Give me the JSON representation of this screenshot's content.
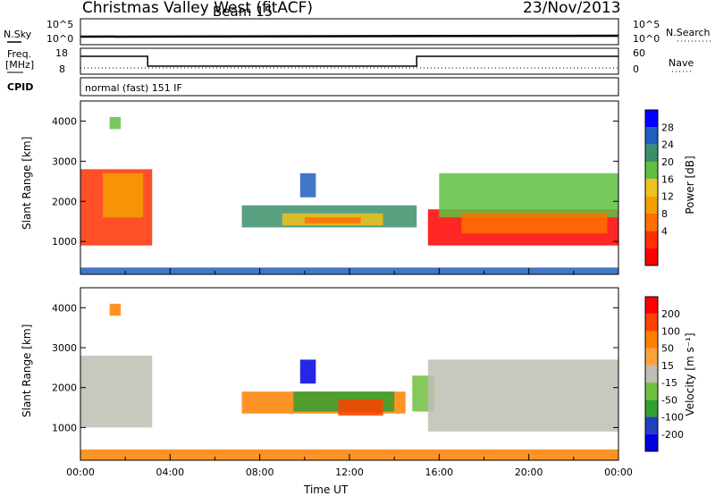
{
  "header": {
    "title": "Christmas Valley West (fitACF)",
    "beam": "Beam 15",
    "date": "23/Nov/2013"
  },
  "status_panels": {
    "nsky_label": "N.Sky",
    "nsearch_label": "N.Search",
    "nsky_ticks": [
      "10^5",
      "10^0"
    ],
    "nsearch_ticks": [
      "10^5",
      "10^0"
    ],
    "freq_label_1": "Freq.",
    "freq_label_2": "[MHz]",
    "freq_ticks": [
      "18",
      "8"
    ],
    "nave_label": "Nave",
    "nave_ticks": [
      "60",
      "0"
    ],
    "cpid_label": "CPID",
    "cpid_value": "normal (fast) 151 IF"
  },
  "colors": {
    "power": [
      "#0000ff",
      "#1f5fbf",
      "#3a8f6a",
      "#5fbf3f",
      "#f0c020",
      "#f5a000",
      "#ff7000",
      "#ff3000",
      "#ff0000"
    ],
    "velocity": [
      "#ff0000",
      "#ff4000",
      "#ff8000",
      "#ffa040",
      "#bebeb4",
      "#70c040",
      "#30a030",
      "#2040c0",
      "#0000e0"
    ],
    "ground_scatter": "#bebeb4"
  },
  "chart_data": [
    {
      "type": "heatmap",
      "name": "power",
      "xlabel": "",
      "ylabel": "Slant Range [km]",
      "x_ticks": [],
      "y_ticks": [
        "4000",
        "3000",
        "2000",
        "1000"
      ],
      "ylim": [
        180,
        4500
      ],
      "colorbar_label": "Power [dB]",
      "colorbar_ticks": [
        "28",
        "24",
        "20",
        "16",
        "12",
        "8",
        "4"
      ],
      "bands": [
        {
          "t0": 0.0,
          "t1": 3.2,
          "r0": 900,
          "r1": 2800,
          "c": 7
        },
        {
          "t0": 1.0,
          "t1": 2.8,
          "r0": 1600,
          "r1": 2700,
          "c": 5
        },
        {
          "t0": 1.3,
          "t1": 1.8,
          "r0": 3800,
          "r1": 4100,
          "c": 3
        },
        {
          "t0": 7.2,
          "t1": 15.0,
          "r0": 1350,
          "r1": 1900,
          "c": 2
        },
        {
          "t0": 9.0,
          "t1": 13.5,
          "r0": 1400,
          "r1": 1700,
          "c": 4
        },
        {
          "t0": 10.0,
          "t1": 12.5,
          "r0": 1450,
          "r1": 1600,
          "c": 6
        },
        {
          "t0": 9.8,
          "t1": 10.5,
          "r0": 2100,
          "r1": 2700,
          "c": 1
        },
        {
          "t0": 15.5,
          "t1": 24.0,
          "r0": 900,
          "r1": 1800,
          "c": 8
        },
        {
          "t0": 16.0,
          "t1": 24.0,
          "r0": 1600,
          "r1": 2700,
          "c": 3
        },
        {
          "t0": 17.0,
          "t1": 23.5,
          "r0": 1200,
          "r1": 1700,
          "c": 6
        },
        {
          "t0": 0.0,
          "t1": 24.0,
          "r0": 180,
          "r1": 350,
          "c": 1
        }
      ]
    },
    {
      "type": "heatmap",
      "name": "velocity",
      "xlabel": "Time UT",
      "ylabel": "Slant Range [km]",
      "x_ticks": [
        "00:00",
        "04:00",
        "08:00",
        "12:00",
        "16:00",
        "20:00",
        "00:00"
      ],
      "y_ticks": [
        "4000",
        "3000",
        "2000",
        "1000"
      ],
      "ylim": [
        180,
        4500
      ],
      "colorbar_label": "Velocity [m s⁻¹]",
      "colorbar_ticks": [
        "200",
        "100",
        "50",
        "15",
        "-15",
        "-50",
        "-100",
        "-200"
      ],
      "bands": [
        {
          "t0": 0.0,
          "t1": 3.2,
          "r0": 1000,
          "r1": 2800,
          "c": 4
        },
        {
          "t0": 1.3,
          "t1": 1.8,
          "r0": 3800,
          "r1": 4100,
          "c": 2
        },
        {
          "t0": 7.2,
          "t1": 14.5,
          "r0": 1350,
          "r1": 1900,
          "c": 2
        },
        {
          "t0": 9.5,
          "t1": 14.0,
          "r0": 1400,
          "r1": 1900,
          "c": 6
        },
        {
          "t0": 11.5,
          "t1": 13.5,
          "r0": 1300,
          "r1": 1700,
          "c": 1
        },
        {
          "t0": 9.8,
          "t1": 10.5,
          "r0": 2100,
          "r1": 2700,
          "c": 8
        },
        {
          "t0": 14.8,
          "t1": 15.8,
          "r0": 1400,
          "r1": 2300,
          "c": 5
        },
        {
          "t0": 15.5,
          "t1": 24.0,
          "r0": 900,
          "r1": 2700,
          "c": 4
        },
        {
          "t0": 0.0,
          "t1": 24.0,
          "r0": 180,
          "r1": 450,
          "c": 2
        }
      ]
    }
  ]
}
